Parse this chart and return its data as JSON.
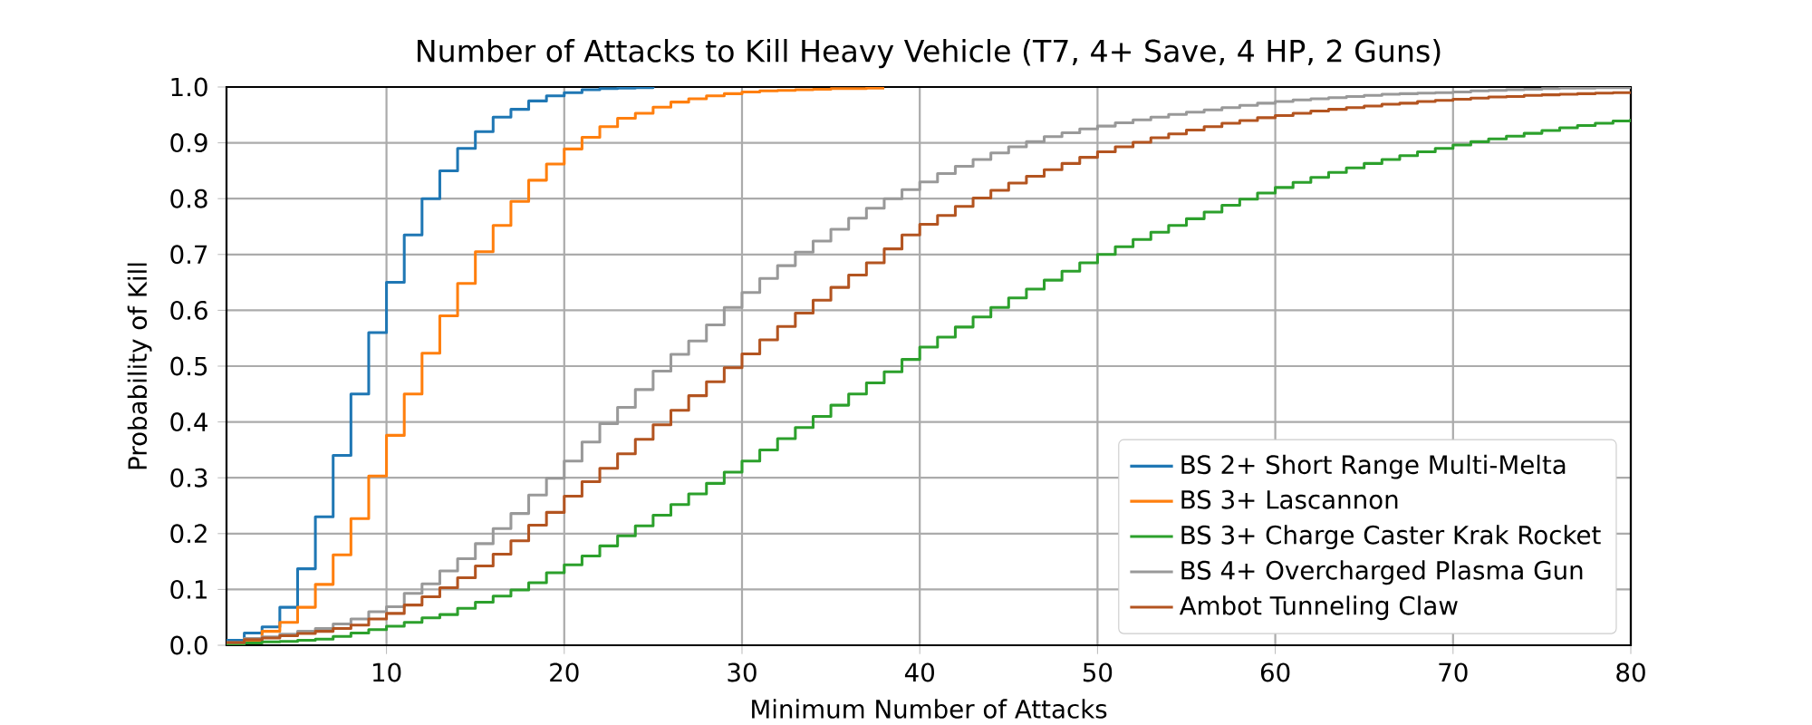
{
  "chart_data": {
    "type": "step",
    "title": "Number of Attacks to Kill Heavy Vehicle (T7, 4+ Save, 4 HP, 2 Guns)",
    "xlabel": "Minimum Number of Attacks",
    "ylabel": "Probability of Kill",
    "xlim": [
      1,
      80
    ],
    "ylim": [
      0,
      1
    ],
    "xticks": [
      10,
      20,
      30,
      40,
      50,
      60,
      70,
      80
    ],
    "yticks": [
      {
        "value": 0,
        "label": "0.0"
      },
      0.1,
      0.2,
      0.3,
      0.4,
      0.5,
      0.6,
      0.7,
      0.8,
      0.9,
      {
        "value": 1,
        "label": "1.0"
      }
    ],
    "grid": true,
    "legend": "bottom right",
    "x": [
      1,
      2,
      3,
      4,
      5,
      6,
      7,
      8,
      9,
      10,
      11,
      12,
      13,
      14,
      15,
      16,
      17,
      18,
      19,
      20,
      21,
      22,
      23,
      24,
      25,
      26,
      27,
      28,
      29,
      30,
      31,
      32,
      33,
      34,
      35,
      36,
      37,
      38,
      39,
      40,
      41,
      42,
      43,
      44,
      45,
      46,
      47,
      48,
      49,
      50,
      51,
      52,
      53,
      54,
      55,
      56,
      57,
      58,
      59,
      60,
      61,
      62,
      63,
      64,
      65,
      66,
      67,
      68,
      69,
      70,
      71,
      72,
      73,
      74,
      75,
      76,
      77,
      78,
      79,
      80
    ],
    "series": [
      {
        "name": "BS 2+ Short Range Multi-Melta",
        "color": "#1f77b4",
        "x": [
          1,
          2,
          3,
          4,
          5,
          6,
          7,
          8,
          9,
          10,
          11,
          12,
          13,
          14,
          15,
          16,
          17,
          18,
          19,
          20,
          21,
          22,
          23,
          24,
          25
        ],
        "values": [
          0.009,
          0.022,
          0.033,
          0.068,
          0.137,
          0.23,
          0.34,
          0.45,
          0.56,
          0.65,
          0.735,
          0.8,
          0.85,
          0.89,
          0.92,
          0.946,
          0.96,
          0.975,
          0.984,
          0.99,
          0.995,
          0.997,
          0.998,
          0.999,
          1.0
        ]
      },
      {
        "name": "BS 3+ Lascannon",
        "color": "#ff7f0e",
        "x": [
          1,
          2,
          3,
          4,
          5,
          6,
          7,
          8,
          9,
          10,
          11,
          12,
          13,
          14,
          15,
          16,
          17,
          18,
          19,
          20,
          21,
          22,
          23,
          24,
          25,
          26,
          27,
          28,
          29,
          30,
          31,
          32,
          33,
          34,
          35,
          36,
          37,
          38
        ],
        "values": [
          0.003,
          0.009,
          0.025,
          0.041,
          0.068,
          0.109,
          0.162,
          0.227,
          0.303,
          0.376,
          0.45,
          0.523,
          0.59,
          0.648,
          0.705,
          0.752,
          0.795,
          0.833,
          0.862,
          0.889,
          0.91,
          0.929,
          0.944,
          0.953,
          0.964,
          0.973,
          0.979,
          0.984,
          0.988,
          0.991,
          0.993,
          0.994,
          0.995,
          0.996,
          0.997,
          0.997,
          0.998,
          0.998
        ]
      },
      {
        "name": "BS 3+ Charge Caster Krak Rocket",
        "color": "#2ca02c",
        "values": [
          0.002,
          0.004,
          0.006,
          0.007,
          0.009,
          0.011,
          0.016,
          0.022,
          0.028,
          0.034,
          0.041,
          0.049,
          0.055,
          0.066,
          0.077,
          0.088,
          0.099,
          0.112,
          0.13,
          0.144,
          0.16,
          0.178,
          0.196,
          0.214,
          0.233,
          0.252,
          0.271,
          0.29,
          0.31,
          0.33,
          0.35,
          0.37,
          0.39,
          0.41,
          0.43,
          0.45,
          0.47,
          0.49,
          0.512,
          0.534,
          0.552,
          0.57,
          0.588,
          0.605,
          0.622,
          0.638,
          0.654,
          0.67,
          0.685,
          0.7,
          0.714,
          0.727,
          0.74,
          0.752,
          0.764,
          0.776,
          0.788,
          0.799,
          0.81,
          0.82,
          0.829,
          0.838,
          0.847,
          0.855,
          0.863,
          0.87,
          0.877,
          0.884,
          0.89,
          0.896,
          0.902,
          0.907,
          0.912,
          0.917,
          0.922,
          0.927,
          0.931,
          0.935,
          0.939,
          0.943
        ]
      },
      {
        "name": "BS 4+ Overcharged Plasma Gun",
        "color": "#999999",
        "values": [
          0.005,
          0.012,
          0.015,
          0.02,
          0.025,
          0.03,
          0.038,
          0.047,
          0.06,
          0.069,
          0.093,
          0.11,
          0.133,
          0.155,
          0.182,
          0.209,
          0.236,
          0.269,
          0.299,
          0.33,
          0.364,
          0.397,
          0.426,
          0.458,
          0.491,
          0.521,
          0.545,
          0.574,
          0.605,
          0.632,
          0.657,
          0.68,
          0.704,
          0.724,
          0.745,
          0.765,
          0.783,
          0.8,
          0.816,
          0.83,
          0.845,
          0.858,
          0.87,
          0.882,
          0.893,
          0.902,
          0.911,
          0.918,
          0.925,
          0.93,
          0.936,
          0.941,
          0.946,
          0.951,
          0.955,
          0.959,
          0.963,
          0.967,
          0.971,
          0.974,
          0.977,
          0.979,
          0.981,
          0.983,
          0.985,
          0.987,
          0.988,
          0.989,
          0.99,
          0.991,
          0.993,
          0.994,
          0.995,
          0.996,
          0.997,
          0.998,
          0.998,
          0.999,
          0.999,
          0.999
        ]
      },
      {
        "name": "Ambot Tunneling Claw",
        "color": "#b35420",
        "values": [
          0.005,
          0.01,
          0.013,
          0.017,
          0.021,
          0.025,
          0.03,
          0.036,
          0.047,
          0.057,
          0.072,
          0.087,
          0.103,
          0.121,
          0.142,
          0.163,
          0.187,
          0.215,
          0.238,
          0.267,
          0.293,
          0.317,
          0.343,
          0.369,
          0.395,
          0.421,
          0.447,
          0.472,
          0.497,
          0.522,
          0.547,
          0.571,
          0.595,
          0.618,
          0.641,
          0.663,
          0.685,
          0.71,
          0.735,
          0.754,
          0.77,
          0.786,
          0.801,
          0.815,
          0.828,
          0.84,
          0.852,
          0.863,
          0.874,
          0.884,
          0.893,
          0.901,
          0.909,
          0.916,
          0.923,
          0.929,
          0.935,
          0.94,
          0.945,
          0.949,
          0.953,
          0.957,
          0.96,
          0.963,
          0.966,
          0.969,
          0.971,
          0.974,
          0.976,
          0.978,
          0.98,
          0.982,
          0.983,
          0.985,
          0.986,
          0.987,
          0.988,
          0.989,
          0.99,
          0.991
        ]
      }
    ]
  }
}
